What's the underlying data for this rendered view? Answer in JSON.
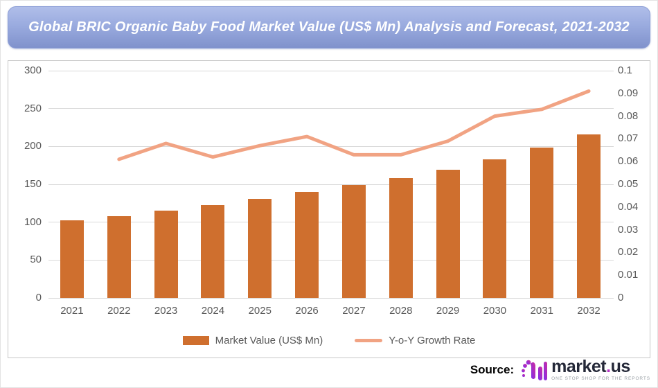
{
  "title": "Global BRIC Organic Baby Food Market Value (US$ Mn) Analysis and Forecast, 2021-2032",
  "chart_data": {
    "type": "combo_bar_line",
    "categories": [
      "2021",
      "2022",
      "2023",
      "2024",
      "2025",
      "2026",
      "2027",
      "2028",
      "2029",
      "2030",
      "2031",
      "2032"
    ],
    "series": [
      {
        "name": "Market Value (US$ Mn)",
        "type": "bar",
        "axis": "left",
        "color": "#cf6f2e",
        "values": [
          102.0,
          108.2,
          115.6,
          122.7,
          130.9,
          140.2,
          149.0,
          158.4,
          169.3,
          182.9,
          198.1,
          216.1
        ]
      },
      {
        "name": "Y-o-Y Growth Rate",
        "type": "line",
        "axis": "right",
        "color": "#f1a383",
        "values": [
          null,
          0.061,
          0.068,
          0.062,
          0.067,
          0.071,
          0.063,
          0.063,
          0.069,
          0.08,
          0.083,
          0.091
        ]
      }
    ],
    "left_axis": {
      "min": 0,
      "max": 300,
      "step": 50,
      "ticks": [
        "300",
        "250",
        "200",
        "150",
        "100",
        "50",
        "0"
      ]
    },
    "right_axis": {
      "min": 0,
      "max": 0.1,
      "step": 0.01,
      "ticks": [
        "0.1",
        "0.09",
        "0.08",
        "0.07",
        "0.06",
        "0.05",
        "0.04",
        "0.03",
        "0.02",
        "0.01",
        "0"
      ]
    },
    "grid": true,
    "legend_position": "bottom"
  },
  "legend": {
    "items": [
      {
        "label": "Market Value (US$ Mn)",
        "swatch": "bar"
      },
      {
        "label": "Y-o-Y Growth Rate",
        "swatch": "line"
      }
    ]
  },
  "footer": {
    "source_label": "Source:",
    "logo_icon": "market-us-wave-icon",
    "wordmark_pre": "market",
    "wordmark_dot": ".",
    "wordmark_post": "us",
    "tagline": "ONE STOP SHOP FOR THE REPORTS"
  },
  "colors": {
    "bar": "#cf6f2e",
    "line": "#f1a383",
    "grid": "#d9d9d9",
    "axis_text": "#595959",
    "banner_top": "#b0bee9",
    "banner_bottom": "#8092cc",
    "banner_text": "#ffffff",
    "chart_border": "#c6c6c6",
    "logo_purple": "#7a2ff0",
    "logo_magenta": "#d12b9e"
  }
}
